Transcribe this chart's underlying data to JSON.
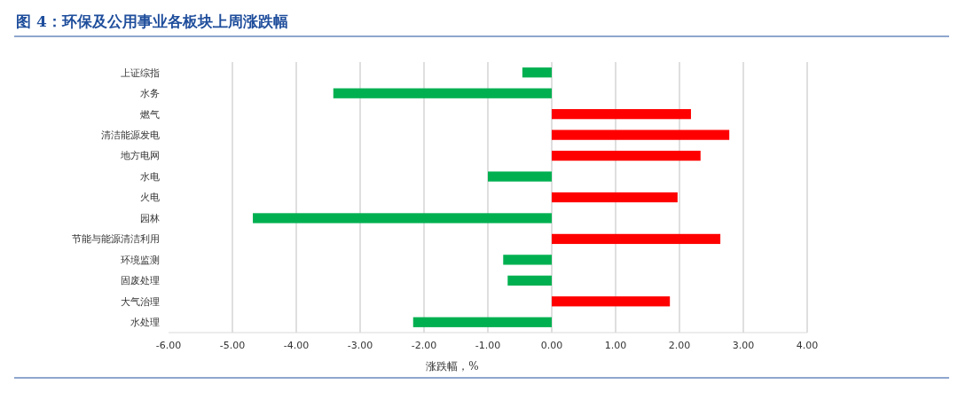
{
  "chart_data": {
    "type": "bar",
    "orientation": "horizontal",
    "title": "图 4：环保及公用事业各板块上周涨跌幅",
    "xlabel": "涨跌幅，%",
    "categories": [
      "上证综指",
      "水务",
      "燃气",
      "清洁能源发电",
      "地方电网",
      "水电",
      "火电",
      "园林",
      "节能与能源清洁利用",
      "环境监测",
      "固废处理",
      "大气治理",
      "水处理"
    ],
    "values": [
      -0.46,
      -3.42,
      2.18,
      2.78,
      2.33,
      -1.0,
      1.97,
      -4.68,
      2.64,
      -0.76,
      -0.69,
      1.85,
      -2.17
    ],
    "colors": [
      "#00b050",
      "#00b050",
      "#ff0000",
      "#ff0000",
      "#ff0000",
      "#00b050",
      "#ff0000",
      "#00b050",
      "#ff0000",
      "#00b050",
      "#00b050",
      "#ff0000",
      "#00b050"
    ],
    "xlim": [
      -6,
      4
    ],
    "xticks": [
      {
        "value": -6,
        "label": "-6.00"
      },
      {
        "value": -5,
        "label": "-5.00"
      },
      {
        "value": -4,
        "label": "-4.00"
      },
      {
        "value": -3,
        "label": "-3.00"
      },
      {
        "value": -2,
        "label": "-2.00"
      },
      {
        "value": -1,
        "label": "-1.00"
      },
      {
        "value": 0,
        "label": "0.00"
      },
      {
        "value": 1,
        "label": "1.00"
      },
      {
        "value": 2,
        "label": "2.00"
      },
      {
        "value": 3,
        "label": "3.00"
      },
      {
        "value": 4,
        "label": "4.00"
      }
    ],
    "grid": "x"
  }
}
